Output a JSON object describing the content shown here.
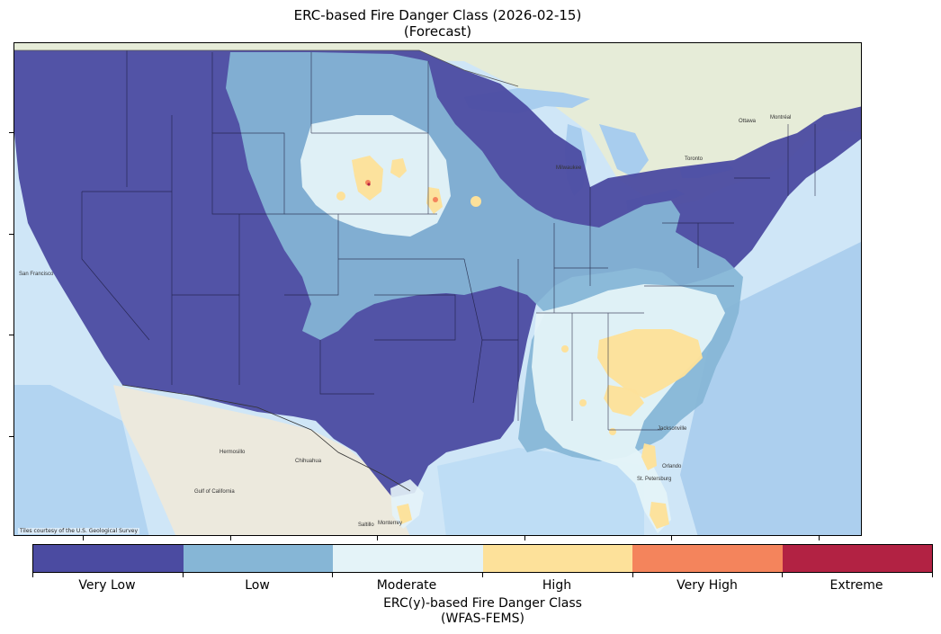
{
  "title": {
    "line1": "ERC-based Fire Danger Class (2026-02-15)",
    "line2": "(Forecast)"
  },
  "map": {
    "credit": "Tiles courtesy of the U.S. Geological Survey",
    "ocean_color": "#cfe6f7",
    "land_color": "#eef0e6",
    "canada_color": "#e6ecd8",
    "mexico_color": "#ece9dd",
    "lakes_color": "#a8cdee",
    "place_labels": [
      "Hermosillo",
      "Chihuahua",
      "Monterrey",
      "Saltillo",
      "Gulf of California",
      "Ottawa",
      "Montréal",
      "Toronto",
      "Milwaukee",
      "Jacksonville",
      "St. Petersburg",
      "Orlando",
      "San Francisco"
    ]
  },
  "colorbar": {
    "title_line1": "ERC(y)-based Fire Danger Class",
    "title_line2": "(WFAS-FEMS)",
    "classes": [
      {
        "label": "Very Low",
        "color": "#4b4ba1"
      },
      {
        "label": "Low",
        "color": "#86b6d6"
      },
      {
        "label": "Moderate",
        "color": "#e4f3f8"
      },
      {
        "label": "High",
        "color": "#fde19a"
      },
      {
        "label": "Very High",
        "color": "#f4845c"
      },
      {
        "label": "Extreme",
        "color": "#b22243"
      }
    ]
  }
}
